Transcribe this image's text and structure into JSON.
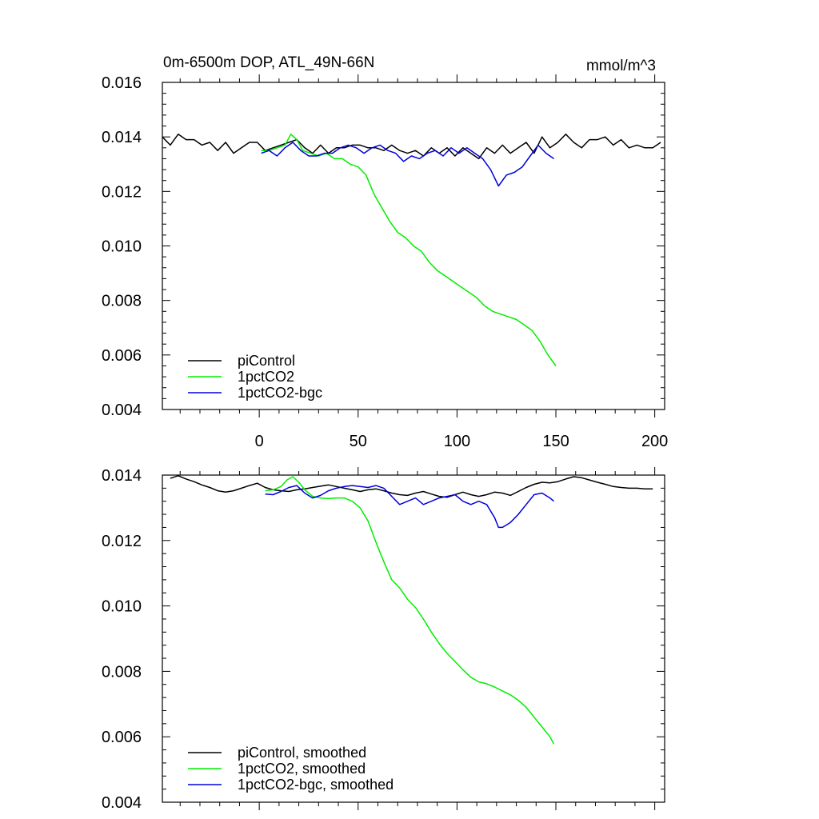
{
  "panels_title": {
    "left": "0m-6500m DOP, ATL_49N-66N",
    "right": "mmol/m^3"
  },
  "colors": {
    "piControl": "#000000",
    "pct": "#00ee00",
    "bgc": "#0000dd"
  },
  "chart_data": [
    {
      "type": "line",
      "panel": "top",
      "title": "0m-6500m DOP, ATL_49N-66N",
      "units": "mmol/m^3",
      "xlim": [
        -49,
        205
      ],
      "ylim": [
        0.004,
        0.016
      ],
      "xticks": [
        "0",
        "50",
        "100",
        "150",
        "200"
      ],
      "yticks": [
        "0.004",
        "0.006",
        "0.008",
        "0.010",
        "0.012",
        "0.014",
        "0.016"
      ],
      "legend_position": "bottom-left",
      "grid": false,
      "series": [
        {
          "name": "piControl",
          "color": "#000000",
          "x": [
            -49,
            -45,
            -41,
            -37,
            -33,
            -29,
            -25,
            -21,
            -17,
            -13,
            -9,
            -5,
            -1,
            3,
            7,
            11,
            15,
            19,
            23,
            27,
            31,
            35,
            39,
            43,
            47,
            51,
            55,
            59,
            63,
            67,
            71,
            75,
            79,
            83,
            87,
            91,
            95,
            99,
            103,
            107,
            111,
            115,
            119,
            123,
            127,
            131,
            135,
            139,
            143,
            147,
            151,
            155,
            159,
            163,
            167,
            171,
            175,
            179,
            183,
            187,
            191,
            195,
            199,
            203
          ],
          "y": [
            0.014,
            0.0137,
            0.0141,
            0.0139,
            0.0139,
            0.0137,
            0.0138,
            0.0135,
            0.0138,
            0.0134,
            0.0136,
            0.0138,
            0.0138,
            0.0135,
            0.0136,
            0.0137,
            0.0138,
            0.0139,
            0.0136,
            0.0134,
            0.0137,
            0.0134,
            0.0136,
            0.0136,
            0.0137,
            0.0137,
            0.0136,
            0.0136,
            0.0135,
            0.0137,
            0.0135,
            0.0134,
            0.0135,
            0.0133,
            0.0136,
            0.0134,
            0.0136,
            0.0133,
            0.0136,
            0.0134,
            0.0132,
            0.0136,
            0.0134,
            0.0137,
            0.0134,
            0.0136,
            0.0138,
            0.0134,
            0.014,
            0.0136,
            0.0138,
            0.0141,
            0.0138,
            0.0136,
            0.0139,
            0.0139,
            0.014,
            0.0137,
            0.0139,
            0.0136,
            0.0137,
            0.0136,
            0.0136,
            0.0138
          ]
        },
        {
          "name": "1pctCO2",
          "color": "#00ee00",
          "x": [
            1,
            5,
            9,
            13,
            16,
            19,
            22,
            26,
            30,
            34,
            38,
            42,
            46,
            50,
            54,
            58,
            62,
            66,
            70,
            74,
            78,
            82,
            86,
            90,
            94,
            98,
            102,
            106,
            110,
            114,
            118,
            122,
            126,
            130,
            134,
            138,
            142,
            146,
            150
          ],
          "y": [
            0.0135,
            0.0135,
            0.0136,
            0.0137,
            0.0141,
            0.0139,
            0.0135,
            0.0134,
            0.0133,
            0.0134,
            0.0132,
            0.0132,
            0.013,
            0.0129,
            0.0126,
            0.0119,
            0.0114,
            0.0109,
            0.0105,
            0.0103,
            0.01,
            0.0098,
            0.0094,
            0.0091,
            0.0089,
            0.0087,
            0.0085,
            0.0083,
            0.0081,
            0.0078,
            0.0076,
            0.0075,
            0.0074,
            0.0073,
            0.0071,
            0.0069,
            0.0065,
            0.006,
            0.0056
          ]
        },
        {
          "name": "1pctCO2-bgc",
          "color": "#0000dd",
          "x": [
            1,
            5,
            9,
            13,
            17,
            21,
            25,
            29,
            33,
            37,
            41,
            45,
            49,
            53,
            57,
            61,
            65,
            69,
            73,
            77,
            81,
            85,
            89,
            93,
            97,
            101,
            105,
            109,
            113,
            117,
            121,
            125,
            129,
            133,
            137,
            141,
            145,
            149
          ],
          "y": [
            0.0134,
            0.0135,
            0.0133,
            0.0136,
            0.0138,
            0.0135,
            0.0133,
            0.0133,
            0.0134,
            0.0134,
            0.0136,
            0.0137,
            0.0136,
            0.0134,
            0.0136,
            0.0137,
            0.0135,
            0.0134,
            0.0131,
            0.0133,
            0.0132,
            0.0134,
            0.0135,
            0.0133,
            0.0136,
            0.0134,
            0.0136,
            0.0134,
            0.0132,
            0.0128,
            0.0122,
            0.0126,
            0.0127,
            0.0129,
            0.0133,
            0.0137,
            0.0134,
            0.0132
          ]
        }
      ]
    },
    {
      "type": "line",
      "panel": "bottom",
      "xlim": [
        -49,
        205
      ],
      "ylim": [
        0.004,
        0.014
      ],
      "yticks": [
        "0.004",
        "0.006",
        "0.008",
        "0.010",
        "0.012",
        "0.014"
      ],
      "legend_position": "bottom-left",
      "grid": false,
      "series": [
        {
          "name": "piControl, smoothed",
          "color": "#000000",
          "x": [
            -45,
            -41,
            -37,
            -33,
            -29,
            -25,
            -21,
            -17,
            -13,
            -9,
            -5,
            -1,
            3,
            7,
            11,
            15,
            19,
            23,
            27,
            31,
            35,
            39,
            43,
            47,
            51,
            55,
            59,
            63,
            67,
            71,
            75,
            79,
            83,
            87,
            91,
            95,
            99,
            103,
            107,
            111,
            115,
            119,
            123,
            127,
            131,
            135,
            139,
            143,
            147,
            151,
            155,
            159,
            163,
            167,
            171,
            175,
            179,
            183,
            187,
            191,
            195,
            199
          ],
          "y": [
            0.0139,
            0.01398,
            0.01388,
            0.0138,
            0.0137,
            0.01362,
            0.01352,
            0.01348,
            0.01352,
            0.0136,
            0.01368,
            0.01375,
            0.01362,
            0.01355,
            0.01352,
            0.0135,
            0.01355,
            0.01358,
            0.01362,
            0.01366,
            0.0137,
            0.01365,
            0.0136,
            0.01355,
            0.0135,
            0.01355,
            0.01358,
            0.01352,
            0.01345,
            0.0134,
            0.01338,
            0.01345,
            0.0135,
            0.01342,
            0.01335,
            0.01332,
            0.0134,
            0.01348,
            0.0134,
            0.01335,
            0.0134,
            0.01348,
            0.01345,
            0.01338,
            0.0135,
            0.01362,
            0.01372,
            0.01378,
            0.01376,
            0.0138,
            0.01388,
            0.01395,
            0.01392,
            0.01385,
            0.01378,
            0.01372,
            0.01365,
            0.01362,
            0.0136,
            0.0136,
            0.01358,
            0.01358
          ]
        },
        {
          "name": "1pctCO2, smoothed",
          "color": "#00ee00",
          "x": [
            3,
            7,
            11,
            14,
            17,
            20,
            23,
            27,
            31,
            35,
            39,
            43,
            47,
            51,
            55,
            59,
            63,
            67,
            71,
            75,
            79,
            83,
            87,
            91,
            95,
            99,
            103,
            107,
            111,
            115,
            119,
            123,
            127,
            131,
            135,
            139,
            143,
            147,
            149
          ],
          "y": [
            0.01352,
            0.01355,
            0.01365,
            0.01385,
            0.01395,
            0.01378,
            0.01355,
            0.01335,
            0.0133,
            0.01328,
            0.0133,
            0.0133,
            0.0132,
            0.013,
            0.0126,
            0.01195,
            0.01135,
            0.0108,
            0.01055,
            0.0102,
            0.00995,
            0.0096,
            0.0092,
            0.00885,
            0.00855,
            0.0083,
            0.00805,
            0.00782,
            0.00768,
            0.00762,
            0.00752,
            0.0074,
            0.00728,
            0.00712,
            0.0069,
            0.0066,
            0.0063,
            0.006,
            0.00578
          ]
        },
        {
          "name": "1pctCO2-bgc, smoothed",
          "color": "#0000dd",
          "x": [
            3,
            7,
            11,
            15,
            19,
            23,
            27,
            31,
            35,
            39,
            43,
            47,
            51,
            55,
            59,
            63,
            67,
            71,
            75,
            79,
            83,
            87,
            91,
            95,
            99,
            103,
            107,
            111,
            115,
            119,
            121,
            123,
            127,
            131,
            135,
            139,
            143,
            147,
            149
          ],
          "y": [
            0.01342,
            0.0134,
            0.0135,
            0.01362,
            0.01368,
            0.01345,
            0.0133,
            0.01338,
            0.01352,
            0.0136,
            0.01365,
            0.01368,
            0.01365,
            0.01362,
            0.01368,
            0.0136,
            0.01335,
            0.0131,
            0.0132,
            0.0133,
            0.0131,
            0.0132,
            0.0133,
            0.01335,
            0.0134,
            0.0132,
            0.0131,
            0.0132,
            0.0131,
            0.0127,
            0.0124,
            0.0124,
            0.01255,
            0.0128,
            0.0131,
            0.0134,
            0.01345,
            0.0133,
            0.0132
          ]
        }
      ]
    }
  ]
}
